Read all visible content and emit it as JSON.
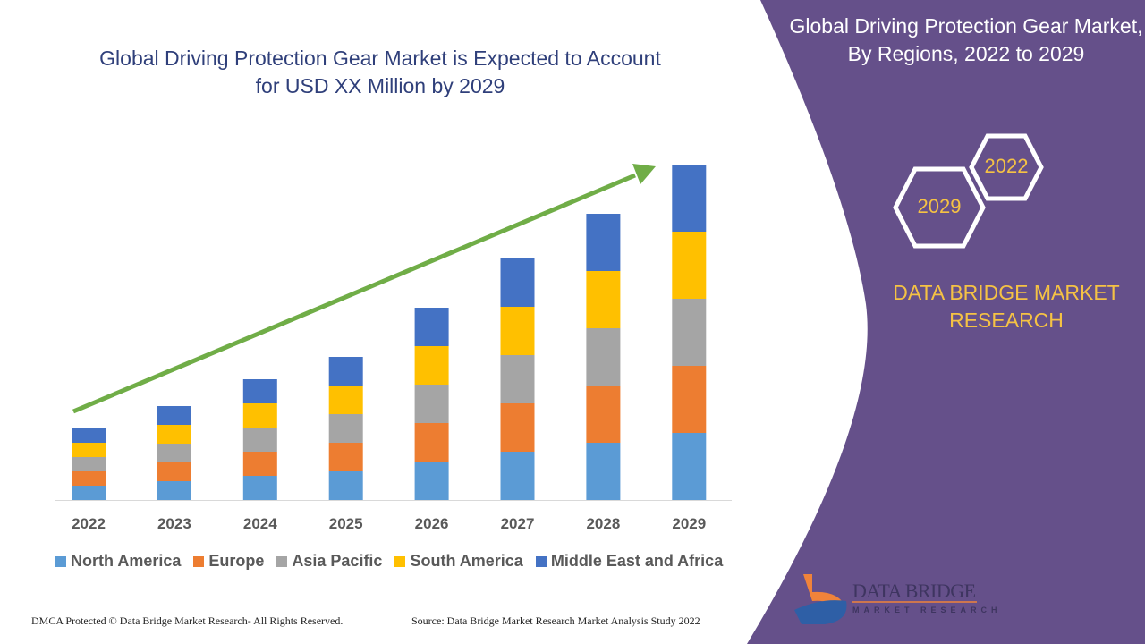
{
  "title": "Global Driving Protection Gear Market is Expected to Account for USD XX Million by 2029",
  "side_panel": {
    "title": "Global Driving Protection Gear Market, By Regions, 2022 to 2029",
    "hex_years": [
      "2022",
      "2029"
    ],
    "brand": "DATA BRIDGE MARKET RESEARCH",
    "logo_text": "DATA BRIDGE",
    "logo_subtext": "MARKET RESEARCH",
    "color": "#65508a"
  },
  "footer": {
    "left": "DMCA Protected © Data Bridge Market Research- All Rights Reserved.",
    "right": "Source: Data Bridge Market Research Market Analysis Study 2022"
  },
  "chart_data": {
    "type": "bar",
    "stacked": true,
    "categories": [
      "2022",
      "2023",
      "2024",
      "2025",
      "2026",
      "2027",
      "2028",
      "2029"
    ],
    "series": [
      {
        "name": "North America",
        "color": "#5b9bd5",
        "values": [
          16,
          21,
          27,
          32,
          43,
          54,
          64,
          75
        ]
      },
      {
        "name": "Europe",
        "color": "#ed7d31",
        "values": [
          16,
          21,
          27,
          32,
          43,
          54,
          64,
          75
        ]
      },
      {
        "name": "Asia Pacific",
        "color": "#a5a5a5",
        "values": [
          16,
          21,
          27,
          32,
          43,
          54,
          64,
          75
        ]
      },
      {
        "name": "South America",
        "color": "#ffc000",
        "values": [
          16,
          21,
          27,
          32,
          43,
          54,
          64,
          75
        ]
      },
      {
        "name": "Middle East and Africa",
        "color": "#4472c4",
        "values": [
          16,
          21,
          27,
          32,
          43,
          54,
          64,
          75
        ]
      }
    ],
    "ylim": [
      0,
      400
    ],
    "grid": false,
    "legend": "bottom",
    "trend_arrow_color": "#70ad47"
  }
}
